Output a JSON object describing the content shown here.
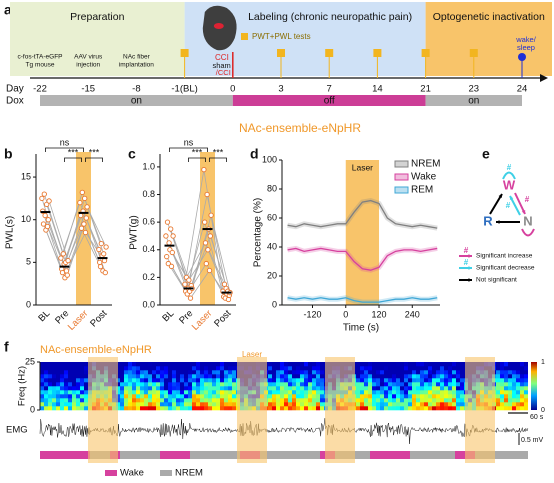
{
  "section_title": "NAc-ensemble-eNpHR",
  "a": {
    "label": "a",
    "phases": [
      {
        "name": "Preparation",
        "start": -22,
        "end": -1,
        "color": "#e9f0d2"
      },
      {
        "name": "Labeling  (chronic neuropathic pain)",
        "start": -1,
        "end": 21,
        "color": "#cfe1f6"
      },
      {
        "name": "Optogenetic inactivation",
        "start": 21,
        "end": 24,
        "color": "#f8c46a"
      }
    ],
    "day_label": "Day",
    "days": [
      "-22",
      "-15",
      "-8",
      "-1(BL)",
      "0",
      "3",
      "7",
      "14",
      "21",
      "23",
      "24"
    ],
    "dox_label": "Dox",
    "dox": [
      {
        "name": "on",
        "start": -22,
        "end": 0,
        "color": "#b3b3b3"
      },
      {
        "name": "off",
        "start": 0,
        "end": 21,
        "color": "#cc3d96"
      },
      {
        "name": "on",
        "start": 21,
        "end": 24,
        "color": "#b3b3b3"
      }
    ],
    "events": [
      {
        "day": -22,
        "lines": [
          "c-fos-tTA-eGFP",
          "Tg mouse"
        ]
      },
      {
        "day": -15,
        "lines": [
          "AAV virus",
          "injection"
        ]
      },
      {
        "day": -8,
        "lines": [
          "NAc fiber",
          "implantation"
        ]
      }
    ],
    "tests": {
      "name": "PWT+PWL tests",
      "days": [
        -1,
        3,
        7,
        14,
        21,
        23
      ],
      "color": "#f2b51f"
    },
    "sleep": {
      "day": 24,
      "lines": [
        "wake/",
        "sleep"
      ],
      "color": "#1f2fd6"
    },
    "surgery": {
      "day": 0,
      "cci": "CCI",
      "sham": "sham",
      "sham_cci": "/CCI"
    }
  },
  "b": {
    "label": "b",
    "ylabel": "PWL(s)",
    "categories": [
      "BL",
      "Pre",
      "Laser",
      "Post"
    ],
    "highlight": 2,
    "subjects": [
      [
        12.5,
        5.5,
        12,
        6.5
      ],
      [
        11,
        4.2,
        10.5,
        5
      ],
      [
        9.5,
        3.8,
        9,
        4.5
      ],
      [
        13,
        6,
        13.2,
        7.2
      ],
      [
        10.5,
        4.8,
        11,
        5.8
      ],
      [
        8.8,
        3.2,
        9.5,
        4
      ],
      [
        11.8,
        5,
        12.5,
        6
      ],
      [
        9.2,
        4,
        8.5,
        5.2
      ],
      [
        10,
        3.5,
        10.2,
        3.8
      ],
      [
        12.2,
        5.2,
        11.5,
        6.8
      ]
    ],
    "means": [
      10.9,
      4.5,
      10.8,
      5.5
    ],
    "ylim": [
      0,
      17
    ],
    "yticks": [
      0,
      5,
      10,
      15
    ],
    "significance": [
      "ns",
      "***",
      "***"
    ],
    "color": "#e8772e",
    "highlight_color": "#f8c46a"
  },
  "c": {
    "label": "c",
    "ylabel": "PWT(g)",
    "categories": [
      "BL",
      "Pre",
      "Laser",
      "Post"
    ],
    "highlight": 2,
    "subjects": [
      [
        0.5,
        0.15,
        0.98,
        0.1
      ],
      [
        0.35,
        0.1,
        0.6,
        0.06
      ],
      [
        0.6,
        0.2,
        0.45,
        0.15
      ],
      [
        0.3,
        0.08,
        0.3,
        0.05
      ],
      [
        0.45,
        0.12,
        0.8,
        0.12
      ],
      [
        0.4,
        0.18,
        0.4,
        0.08
      ],
      [
        0.55,
        0.1,
        0.55,
        0.1
      ],
      [
        0.28,
        0.05,
        0.25,
        0.04
      ],
      [
        0.38,
        0.14,
        0.5,
        0.07
      ],
      [
        0.5,
        0.12,
        0.65,
        0.09
      ]
    ],
    "means": [
      0.43,
      0.12,
      0.55,
      0.09
    ],
    "ylim": [
      0,
      1.05
    ],
    "yticks": [
      {
        "value": 0,
        "label": "0.0"
      },
      0.2,
      0.4,
      0.6,
      0.8,
      {
        "value": 1,
        "label": "1.0"
      }
    ],
    "significance": [
      "ns",
      "***",
      "***"
    ],
    "color": "#e8772e",
    "highlight_color": "#f8c46a"
  },
  "d": {
    "label": "d",
    "ylabel": "Percentage (%)",
    "xlabel": "Time (s)",
    "x": [
      -210,
      -180,
      -150,
      -120,
      -90,
      -60,
      -30,
      0,
      30,
      60,
      90,
      120,
      150,
      180,
      210,
      240,
      270,
      300,
      330
    ],
    "series": [
      {
        "name": "NREM",
        "color": "#808080",
        "values": [
          55,
          54,
          56,
          55,
          54,
          55,
          56,
          56,
          64,
          71,
          72,
          70,
          60,
          56,
          55,
          54,
          55,
          54,
          53
        ]
      },
      {
        "name": "Wake",
        "color": "#d6419e",
        "values": [
          38,
          39,
          37,
          38,
          39,
          38,
          37,
          37,
          30,
          25,
          24,
          26,
          34,
          37,
          38,
          38,
          37,
          38,
          39
        ]
      },
      {
        "name": "REM",
        "color": "#3fa7d6",
        "values": [
          5,
          4,
          5,
          4,
          5,
          4,
          4,
          5,
          3,
          2,
          2,
          2,
          3,
          4,
          4,
          5,
          4,
          4,
          5
        ]
      }
    ],
    "xlim": [
      -230,
      340
    ],
    "xticks": [
      -120,
      0,
      120,
      240
    ],
    "ylim": [
      0,
      100
    ],
    "yticks": [
      0,
      20,
      40,
      60,
      80,
      100
    ],
    "laser": {
      "name": "Laser",
      "start": 0,
      "end": 120,
      "color": "#f8c46a"
    }
  },
  "e": {
    "label": "e",
    "nodes": [
      {
        "label": "W",
        "color": "#d6419e"
      },
      {
        "label": "R",
        "color": "#2f6fc0"
      },
      {
        "label": "N",
        "color": "#8a8a8a"
      }
    ],
    "hash": "#",
    "legend": [
      {
        "text": "Significant increase",
        "color": "#d6419e"
      },
      {
        "text": "Significant decrease",
        "color": "#3fd0e6"
      },
      {
        "text": "Not significant",
        "color": "#000000"
      }
    ]
  },
  "f": {
    "label": "f",
    "title": "NAc-ensemble-eNpHR",
    "laser_label": "Laser",
    "spec_ylabel": "Freq (Hz)",
    "spec_ylim": [
      0,
      25
    ],
    "spec_yticks": [
      0,
      25
    ],
    "colorbar_ticks": [
      0,
      1
    ],
    "emg_label": "EMG",
    "xlim": [
      0,
      1464
    ],
    "laser_periods": [
      [
        144,
        234
      ],
      [
        591,
        681
      ],
      [
        855,
        945
      ],
      [
        1275,
        1365
      ]
    ],
    "time_scale": {
      "value": 60,
      "label": "60 s"
    },
    "emg_scale": "0.5 mV",
    "hypnogram": {
      "states": [
        {
          "name": "Wake",
          "color": "#d6419e"
        },
        {
          "name": "NREM",
          "color": "#aaaaaa"
        }
      ],
      "durations": [
        150,
        60,
        30,
        120,
        90,
        150,
        60,
        180,
        45,
        105,
        120,
        135,
        60,
        159
      ]
    }
  }
}
